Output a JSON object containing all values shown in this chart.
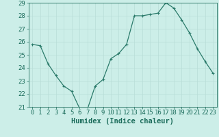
{
  "x": [
    0,
    1,
    2,
    3,
    4,
    5,
    6,
    7,
    8,
    9,
    10,
    11,
    12,
    13,
    14,
    15,
    16,
    17,
    18,
    19,
    20,
    21,
    22,
    23
  ],
  "y": [
    25.8,
    25.7,
    24.3,
    23.4,
    22.6,
    22.2,
    20.9,
    20.8,
    22.6,
    23.1,
    24.7,
    25.1,
    25.8,
    28.0,
    28.0,
    28.1,
    28.2,
    29.0,
    28.6,
    27.7,
    26.7,
    25.5,
    24.5,
    23.6
  ],
  "xlabel": "Humidex (Indice chaleur)",
  "ylim": [
    21,
    29
  ],
  "yticks": [
    21,
    22,
    23,
    24,
    25,
    26,
    27,
    28,
    29
  ],
  "xticks": [
    0,
    1,
    2,
    3,
    4,
    5,
    6,
    7,
    8,
    9,
    10,
    11,
    12,
    13,
    14,
    15,
    16,
    17,
    18,
    19,
    20,
    21,
    22,
    23
  ],
  "line_color": "#2a7a6a",
  "marker": "P",
  "marker_size": 2.5,
  "bg_color": "#cceee8",
  "grid_color": "#b8ddd8",
  "tick_label_color": "#1a6b5a",
  "xlabel_color": "#1a6b5a",
  "xlabel_fontsize": 7.5,
  "tick_fontsize": 6.5,
  "linewidth": 0.9
}
